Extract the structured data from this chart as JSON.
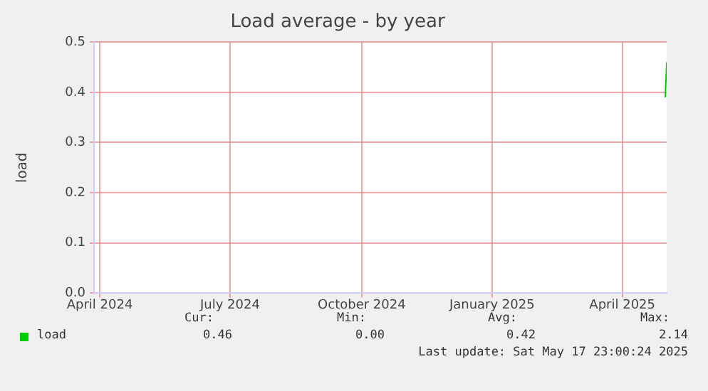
{
  "chart_data": {
    "type": "line",
    "title": "Load average - by year",
    "ylabel": "load",
    "x": [
      "2025-05-16",
      "2025-05-17"
    ],
    "series": [
      {
        "name": "load",
        "color": "#00cc00",
        "values": [
          0.39,
          0.46
        ]
      }
    ],
    "xlim": [
      "2024-04-12",
      "2025-05-17"
    ],
    "xticks": [
      {
        "value": "2024-04-16",
        "label": "April 2024"
      },
      {
        "value": "2024-07-16",
        "label": "July 2024"
      },
      {
        "value": "2024-10-16",
        "label": "October 2024"
      },
      {
        "value": "2025-01-15",
        "label": "January 2025"
      },
      {
        "value": "2025-04-16",
        "label": "April 2025"
      }
    ],
    "ylim": [
      0,
      0.5
    ],
    "yticks": [
      {
        "value": 0,
        "label": "0.0"
      },
      {
        "value": 0.1,
        "label": "0.1"
      },
      {
        "value": 0.2,
        "label": "0.2"
      },
      {
        "value": 0.3,
        "label": "0.3"
      },
      {
        "value": 0.4,
        "label": "0.4"
      },
      {
        "value": 0.5,
        "label": "0.5"
      }
    ],
    "grid": true,
    "legend": "bottom",
    "marker": "none",
    "line_style": "solid",
    "annotations": [
      "Cur:",
      "0.46",
      "Min:",
      "0.00",
      "Avg:",
      "0.42",
      "Max:",
      "2.14",
      "Last update: Sat May 17 23:00:24 2025"
    ]
  }
}
